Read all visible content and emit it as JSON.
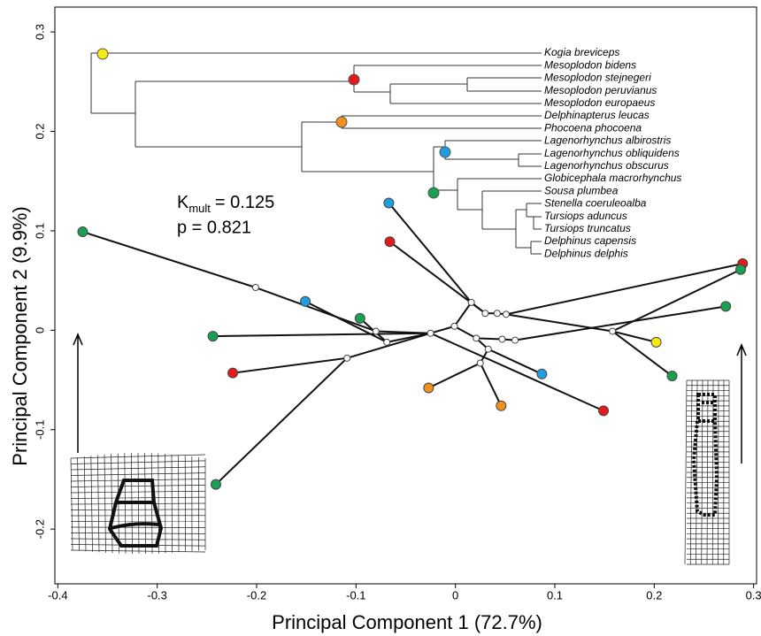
{
  "chart_data": {
    "type": "scatter",
    "x_label": "Principal Component 1 (72.7%)",
    "y_label": "Principal Component 2 (9.9%)",
    "xlim": [
      -0.403,
      0.303
    ],
    "ylim": [
      -0.255,
      0.325
    ],
    "xticks": [
      -0.4,
      -0.3,
      -0.2,
      -0.1,
      0,
      0.1,
      0.2,
      0.3
    ],
    "yticks": [
      -0.2,
      -0.1,
      0,
      0.1,
      0.2,
      0.3
    ],
    "annotation": {
      "k": "K",
      "k_sub": "mult",
      "k_value": "= 0.125",
      "p": "p = 0.821"
    },
    "tree_labels": [
      "Kogia breviceps",
      "Mesoplodon bidens",
      "Mesoplodon stejnegeri",
      "Mesoplodon peruvianus",
      "Mesoplodon europaeus",
      "Delphinapterus leucas",
      "Phocoena phocoena",
      "Lagenorhynchus albirostris",
      "Lagenorhynchus obliquidens",
      "Lagenorhynchus obscurus",
      "Globicephala macrorhynchus",
      "Sousa plumbea",
      "Stenella coeruleoalba",
      "Tursiops aduncus",
      "Tursiops truncatus",
      "Delphinus capensis",
      "Delphinus delphis"
    ],
    "points": {
      "x": [
        -0.375,
        -0.067,
        -0.066,
        -0.151,
        -0.096,
        -0.244,
        -0.224,
        -0.241,
        -0.027,
        0.046,
        0.087,
        0.149,
        0.202,
        0.218,
        0.272,
        0.289,
        0.287,
        -0.201,
        -0.08,
        -0.069,
        -0.109,
        -0.025,
        -0.001,
        0.016,
        0.03,
        0.042,
        0.051,
        0.021,
        0.033,
        0.025,
        0.047,
        0.06,
        0.158
      ],
      "y": [
        0.099,
        0.128,
        0.089,
        0.029,
        0.012,
        -0.006,
        -0.043,
        -0.155,
        -0.058,
        -0.076,
        -0.044,
        -0.081,
        -0.012,
        -0.046,
        0.024,
        0.067,
        0.061,
        0.043,
        -0.001,
        -0.012,
        -0.028,
        -0.003,
        0.004,
        0.028,
        0.017,
        0.017,
        0.016,
        -0.008,
        -0.019,
        -0.033,
        -0.009,
        -0.01,
        -0.001
      ],
      "colors": [
        "#1aa052",
        "#1f9ee0",
        "#e31a1c",
        "#1f9ee0",
        "#1aa052",
        "#1aa052",
        "#e31a1c",
        "#1aa052",
        "#f0901e",
        "#f0901e",
        "#1f9ee0",
        "#e31a1c",
        "#f5eb14",
        "#1aa052",
        "#1aa052",
        "#e31a1c",
        "#1aa052",
        "#ffffff",
        "#ffffff",
        "#ffffff",
        "#ffffff",
        "#ffffff",
        "#ffffff",
        "#ffffff",
        "#ffffff",
        "#ffffff",
        "#ffffff",
        "#ffffff",
        "#ffffff",
        "#ffffff",
        "#ffffff",
        "#ffffff",
        "#ffffff"
      ]
    },
    "branches": [
      [
        0,
        17
      ],
      [
        17,
        18
      ],
      [
        3,
        19
      ],
      [
        4,
        19
      ],
      [
        18,
        21
      ],
      [
        19,
        21
      ],
      [
        5,
        21
      ],
      [
        6,
        20
      ],
      [
        7,
        20
      ],
      [
        20,
        21
      ],
      [
        21,
        22
      ],
      [
        22,
        23
      ],
      [
        1,
        23
      ],
      [
        2,
        24
      ],
      [
        23,
        24
      ],
      [
        24,
        25
      ],
      [
        25,
        26
      ],
      [
        26,
        15
      ],
      [
        26,
        32
      ],
      [
        32,
        16
      ],
      [
        32,
        13
      ],
      [
        32,
        12
      ],
      [
        22,
        27
      ],
      [
        27,
        28
      ],
      [
        28,
        29
      ],
      [
        29,
        8
      ],
      [
        29,
        9
      ],
      [
        28,
        10
      ],
      [
        27,
        30
      ],
      [
        30,
        31
      ],
      [
        31,
        14
      ],
      [
        21,
        11
      ]
    ]
  }
}
